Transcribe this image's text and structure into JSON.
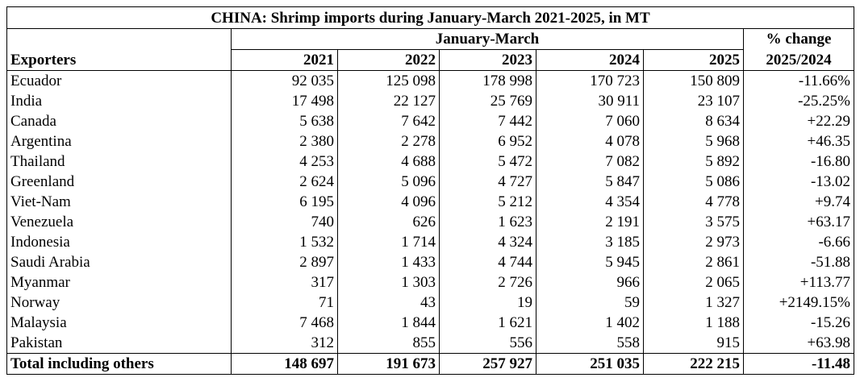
{
  "table": {
    "title": "CHINA: Shrimp imports during January-March 2021-2025, in MT",
    "period_header": "January-March",
    "exporters_header": "Exporters",
    "change_header_line1": "% change",
    "change_header_line2": "2025/2024",
    "years": [
      "2021",
      "2022",
      "2023",
      "2024",
      "2025"
    ],
    "rows": [
      {
        "exporter": "Ecuador",
        "values": [
          "92 035",
          "125 098",
          "178 998",
          "170 723",
          "150 809"
        ],
        "change": "-11.66%"
      },
      {
        "exporter": "India",
        "values": [
          "17 498",
          "22 127",
          "25 769",
          "30 911",
          "23 107"
        ],
        "change": "-25.25%"
      },
      {
        "exporter": "Canada",
        "values": [
          "5 638",
          "7 642",
          "7 442",
          "7 060",
          "8 634"
        ],
        "change": "+22.29"
      },
      {
        "exporter": "Argentina",
        "values": [
          "2 380",
          "2 278",
          "6 952",
          "4 078",
          "5 968"
        ],
        "change": "+46.35"
      },
      {
        "exporter": "Thailand",
        "values": [
          "4 253",
          "4 688",
          "5 472",
          "7 082",
          "5 892"
        ],
        "change": "-16.80"
      },
      {
        "exporter": "Greenland",
        "values": [
          "2 624",
          "5 096",
          "4 727",
          "5 847",
          "5 086"
        ],
        "change": "-13.02"
      },
      {
        "exporter": "Viet-Nam",
        "values": [
          "6 195",
          "4 096",
          "5 212",
          "4 354",
          "4 778"
        ],
        "change": "+9.74"
      },
      {
        "exporter": "Venezuela",
        "values": [
          "740",
          "626",
          "1 623",
          "2 191",
          "3 575"
        ],
        "change": "+63.17"
      },
      {
        "exporter": "Indonesia",
        "values": [
          "1 532",
          "1 714",
          "4 324",
          "3 185",
          "2 973"
        ],
        "change": "-6.66"
      },
      {
        "exporter": "Saudi Arabia",
        "values": [
          "2 897",
          "1 433",
          "4 744",
          "5 945",
          "2 861"
        ],
        "change": "-51.88"
      },
      {
        "exporter": "Myanmar",
        "values": [
          "317",
          "1 303",
          "2 726",
          "966",
          "2 065"
        ],
        "change": "+113.77"
      },
      {
        "exporter": "Norway",
        "values": [
          "71",
          "43",
          "19",
          "59",
          "1 327"
        ],
        "change": "+2149.15%"
      },
      {
        "exporter": "Malaysia",
        "values": [
          "7 468",
          "1 844",
          "1 621",
          "1 402",
          "1 188"
        ],
        "change": "-15.26"
      },
      {
        "exporter": "Pakistan",
        "values": [
          "312",
          "855",
          "556",
          "558",
          "915"
        ],
        "change": "+63.98"
      }
    ],
    "total": {
      "exporter": "Total including others",
      "values": [
        "148 697",
        "191 673",
        "257 927",
        "251 035",
        "222 215"
      ],
      "change": "-11.48"
    }
  }
}
